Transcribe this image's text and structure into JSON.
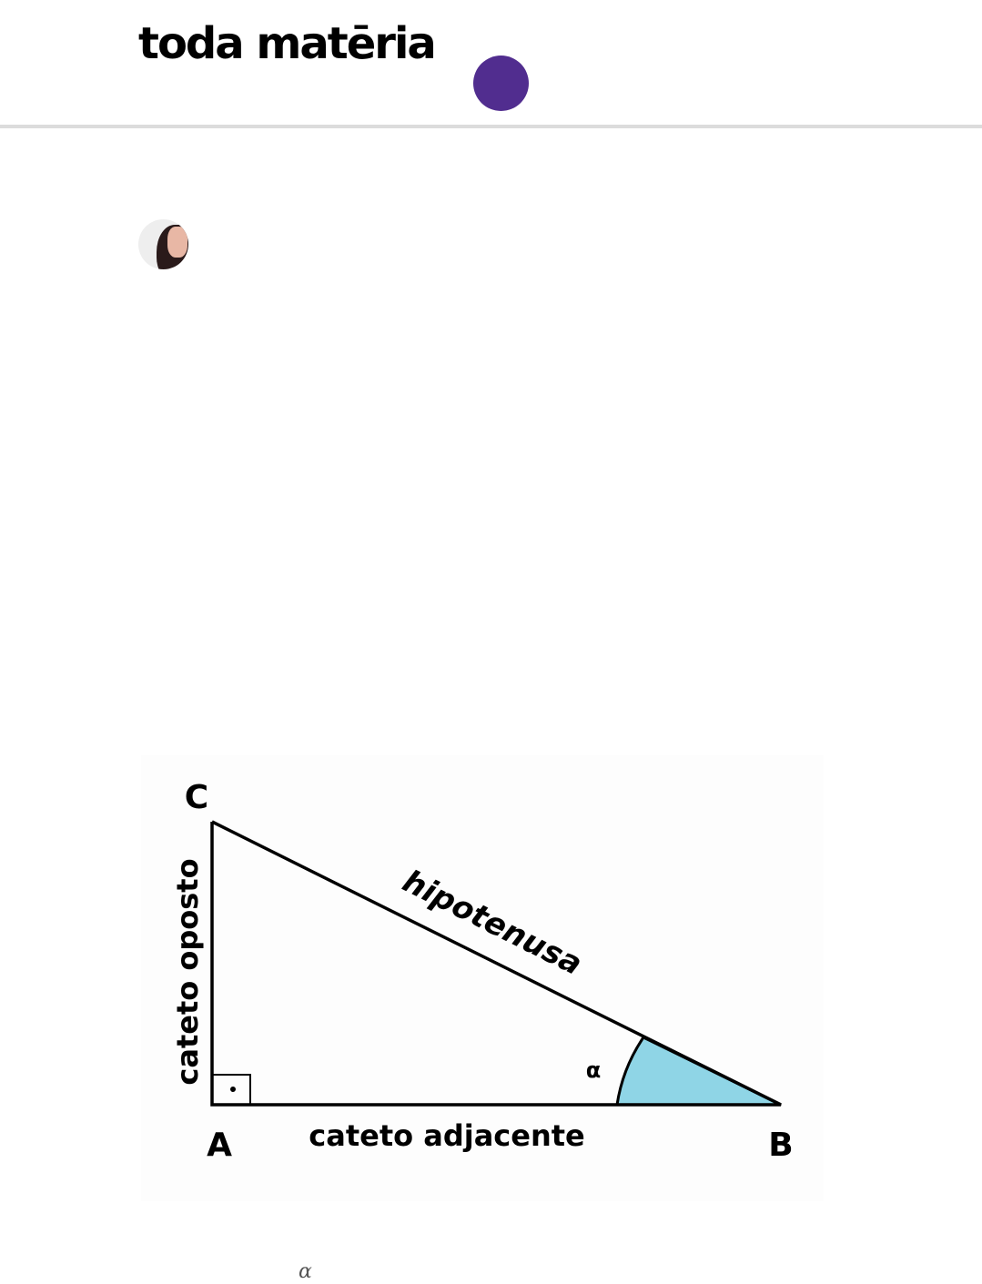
{
  "header": {
    "logo_text": "toda matēria",
    "menu_button_color": "#512d8f"
  },
  "author": {
    "avatar_icon": "author-avatar"
  },
  "figure": {
    "vertex_a": "A",
    "vertex_b": "B",
    "vertex_c": "C",
    "hypotenuse_label": "hipotenusa",
    "opposite_leg_label": "cateto oposto",
    "adjacent_leg_label": "cateto adjacente",
    "angle_label": "α",
    "angle_fill_color": "#8fd5e6"
  },
  "body": {
    "alpha_symbol": "α"
  }
}
